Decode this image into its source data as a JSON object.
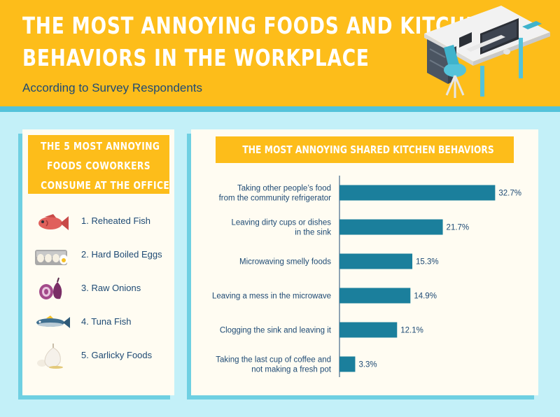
{
  "header": {
    "title_line1": "The Most Annoying Foods and Kitchen",
    "title_line2": "Behaviors in the Workplace",
    "subtitle": "According to Survey Respondents"
  },
  "foods_panel": {
    "heading_line1": "The 5 Most Annoying",
    "heading_line2": "Foods Coworkers",
    "heading_line3": "Consume at the Office",
    "items": [
      {
        "label": "1. Reheated Fish",
        "icon": "fish-icon"
      },
      {
        "label": "2. Hard Boiled Eggs",
        "icon": "egg-carton-icon"
      },
      {
        "label": "3. Raw Onions",
        "icon": "onion-icon"
      },
      {
        "label": "4. Tuna Fish",
        "icon": "tuna-icon"
      },
      {
        "label": "5. Garlicky Foods",
        "icon": "garlic-icon"
      }
    ]
  },
  "chart_data": {
    "type": "bar",
    "orientation": "horizontal",
    "title": "The Most Annoying Shared Kitchen Behaviors",
    "categories": [
      [
        "Taking other people’s food",
        "from the community refrigerator"
      ],
      [
        "Leaving dirty cups or dishes",
        "in the sink"
      ],
      [
        "Microwaving smelly foods"
      ],
      [
        "Leaving a mess in the microwave"
      ],
      [
        "Clogging the sink and leaving it"
      ],
      [
        "Taking the last cup of coffee and",
        "not making a fresh pot"
      ]
    ],
    "values": [
      32.7,
      21.7,
      15.3,
      14.9,
      12.1,
      3.3
    ],
    "value_labels": [
      "32.7%",
      "21.7%",
      "15.3%",
      "14.9%",
      "12.1%",
      "3.3%"
    ],
    "unit": "%",
    "xlim": [
      0,
      35
    ],
    "bar_color": "#1b7f9c",
    "grid": false,
    "legend": "none"
  },
  "colors": {
    "header_bg": "#fdbd1a",
    "page_bg": "#c3f0f8",
    "accent": "#54c3da",
    "text": "#1e4a74"
  }
}
